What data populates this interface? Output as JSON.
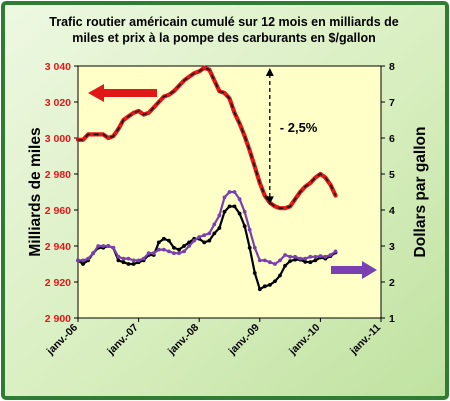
{
  "chart_data": {
    "type": "line",
    "title_lines": [
      "Trafic routier américain cumulé sur 12 mois en milliards de",
      "miles et prix à la pompe des carburants en $/gallon"
    ],
    "ylabel_left": "Milliards de miles",
    "ylabel_right": "Dollars par gallon",
    "x_range": [
      2006.0,
      2011.0
    ],
    "x_ticks": [
      {
        "x": 2006.0,
        "label": "janv.-06"
      },
      {
        "x": 2007.0,
        "label": "janv.-07"
      },
      {
        "x": 2008.0,
        "label": "janv.-08"
      },
      {
        "x": 2009.0,
        "label": "janv.-09"
      },
      {
        "x": 2010.0,
        "label": "janv.-10"
      },
      {
        "x": 2011.0,
        "label": "janv.-11"
      }
    ],
    "ylim_left": [
      2900,
      3040
    ],
    "yticks_left": [
      2900,
      2920,
      2940,
      2960,
      2980,
      3000,
      3020,
      3040
    ],
    "yticks_left_labels": [
      "2 900",
      "2 920",
      "2 940",
      "2 960",
      "2 980",
      "3 000",
      "3 020",
      "3 040"
    ],
    "ylim_right": [
      1,
      8
    ],
    "yticks_right": [
      1,
      2,
      3,
      4,
      5,
      6,
      7,
      8
    ],
    "grid": false,
    "colors": {
      "plot_bg": "#ffffc8",
      "traffic": "#e01818",
      "traffic_dash": "#111111",
      "black_series": "#000000",
      "purple_series": "#7a3fb0",
      "frame": "#2e7d32",
      "outer_bg": "#dcefc4"
    },
    "annotation": {
      "text": "- 2,5%",
      "x_from": 2009.0,
      "from_value": 3040,
      "to_value": 2962
    },
    "arrows": {
      "left_axis_color": "#e01818",
      "right_axis_color": "#7a3fb0"
    },
    "series": [
      {
        "axis": "left",
        "x": [
          2006.0,
          2006.083,
          2006.167,
          2006.25,
          2006.333,
          2006.417,
          2006.5,
          2006.583,
          2006.667,
          2006.75,
          2006.833,
          2006.917,
          2007.0,
          2007.083,
          2007.167,
          2007.25,
          2007.333,
          2007.417,
          2007.5,
          2007.583,
          2007.667,
          2007.75,
          2007.833,
          2007.917,
          2008.0,
          2008.083,
          2008.167,
          2008.25,
          2008.333,
          2008.417,
          2008.5,
          2008.583,
          2008.667,
          2008.75,
          2008.833,
          2008.917,
          2009.0,
          2009.083,
          2009.167,
          2009.25,
          2009.333,
          2009.417,
          2009.5,
          2009.583,
          2009.667,
          2009.75,
          2009.833,
          2009.917,
          2010.0,
          2010.083,
          2010.167,
          2010.25
        ],
        "values": [
          2999,
          2999,
          3002,
          3002,
          3002,
          3002,
          3000,
          3001,
          3005,
          3010,
          3012,
          3014,
          3015,
          3013,
          3014,
          3017,
          3020,
          3023,
          3024,
          3026,
          3029,
          3032,
          3034,
          3036,
          3037,
          3039,
          3038,
          3032,
          3026,
          3025,
          3022,
          3014,
          3008,
          3001,
          2993,
          2984,
          2975,
          2968,
          2964,
          2962,
          2961,
          2961,
          2962,
          2966,
          2970,
          2973,
          2975,
          2978,
          2980,
          2978,
          2974,
          2968
        ]
      },
      {
        "axis": "right",
        "x": [
          2006.0,
          2006.083,
          2006.167,
          2006.25,
          2006.333,
          2006.417,
          2006.5,
          2006.583,
          2006.667,
          2006.75,
          2006.833,
          2006.917,
          2007.0,
          2007.083,
          2007.167,
          2007.25,
          2007.333,
          2007.417,
          2007.5,
          2007.583,
          2007.667,
          2007.75,
          2007.833,
          2007.917,
          2008.0,
          2008.083,
          2008.167,
          2008.25,
          2008.333,
          2008.417,
          2008.5,
          2008.583,
          2008.667,
          2008.75,
          2008.833,
          2008.917,
          2009.0,
          2009.083,
          2009.167,
          2009.25,
          2009.333,
          2009.417,
          2009.5,
          2009.583,
          2009.667,
          2009.75,
          2009.833,
          2009.917,
          2010.0,
          2010.083,
          2010.167,
          2010.25
        ],
        "values": [
          2.6,
          2.5,
          2.6,
          2.8,
          2.95,
          2.95,
          3.0,
          2.95,
          2.6,
          2.55,
          2.5,
          2.5,
          2.55,
          2.6,
          2.75,
          2.75,
          3.1,
          3.2,
          3.15,
          2.95,
          2.9,
          3.0,
          3.1,
          3.2,
          3.2,
          3.1,
          3.15,
          3.35,
          3.5,
          3.95,
          4.1,
          4.1,
          3.9,
          3.55,
          2.95,
          2.25,
          1.8,
          1.88,
          1.92,
          2.02,
          2.18,
          2.45,
          2.58,
          2.62,
          2.62,
          2.56,
          2.55,
          2.6,
          2.68,
          2.65,
          2.72,
          2.82
        ]
      },
      {
        "axis": "right",
        "x": [
          2006.0,
          2006.083,
          2006.167,
          2006.25,
          2006.333,
          2006.417,
          2006.5,
          2006.583,
          2006.667,
          2006.75,
          2006.833,
          2006.917,
          2007.0,
          2007.083,
          2007.167,
          2007.25,
          2007.333,
          2007.417,
          2007.5,
          2007.583,
          2007.667,
          2007.75,
          2007.833,
          2007.917,
          2008.0,
          2008.083,
          2008.167,
          2008.25,
          2008.333,
          2008.417,
          2008.5,
          2008.583,
          2008.667,
          2008.75,
          2008.833,
          2008.917,
          2009.0,
          2009.083,
          2009.167,
          2009.25,
          2009.333,
          2009.417,
          2009.5,
          2009.583,
          2009.667,
          2009.75,
          2009.833,
          2009.917,
          2010.0,
          2010.083,
          2010.167,
          2010.25
        ],
        "values": [
          2.6,
          2.6,
          2.65,
          2.8,
          3.0,
          3.0,
          3.0,
          2.95,
          2.7,
          2.65,
          2.65,
          2.6,
          2.6,
          2.65,
          2.8,
          2.8,
          2.9,
          2.9,
          2.85,
          2.8,
          2.8,
          2.85,
          3.0,
          3.15,
          3.25,
          3.3,
          3.35,
          3.6,
          3.85,
          4.35,
          4.5,
          4.5,
          4.3,
          3.95,
          3.45,
          2.95,
          2.6,
          2.6,
          2.55,
          2.5,
          2.6,
          2.75,
          2.7,
          2.7,
          2.65,
          2.65,
          2.7,
          2.7,
          2.72,
          2.7,
          2.75,
          2.85
        ]
      }
    ]
  }
}
